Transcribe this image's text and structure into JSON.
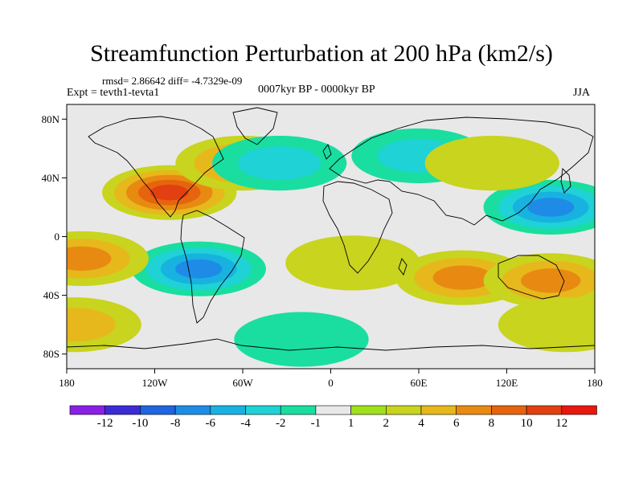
{
  "title": "Streamfunction Perturbation at 200 hPa (km2/s)",
  "subtitle_stats": "rmsd= 2.86642  diff= -4.7329e-09",
  "experiment": "Expt = tevth1-tevta1",
  "period": "0007kyr BP - 0000kyr BP",
  "season": "JJA",
  "chart_data": {
    "type": "heatmap",
    "variable": "streamfunction perturbation",
    "level": "200 hPa",
    "units": "km2/s",
    "x_axis": {
      "range": [
        -180,
        180
      ],
      "ticks": [
        -180,
        -120,
        -60,
        0,
        60,
        120,
        180
      ],
      "tick_labels": [
        "180",
        "120W",
        "60W",
        "0",
        "60E",
        "120E",
        "180"
      ]
    },
    "y_axis": {
      "range": [
        -90,
        90
      ],
      "ticks": [
        80,
        40,
        0,
        -40,
        -80
      ],
      "tick_labels": [
        "80N",
        "40N",
        "0",
        "40S",
        "80S"
      ]
    },
    "colorbar": {
      "labels": [
        "-12",
        "-10",
        "-8",
        "-6",
        "-4",
        "-2",
        "-1",
        "1",
        "2",
        "4",
        "6",
        "8",
        "10",
        "12"
      ],
      "colors": [
        "#8a20e6",
        "#3b2bd6",
        "#1f64e0",
        "#1e8ce6",
        "#18b2e0",
        "#1ed2d6",
        "#19dea0",
        "#e8e8e8",
        "#a0e01c",
        "#c8d41e",
        "#e6b81c",
        "#e88a12",
        "#e6640e",
        "#e24010",
        "#e81810"
      ]
    },
    "features": [
      {
        "lon": -110,
        "lat": 30,
        "value": 10
      },
      {
        "lon": -60,
        "lat": 50,
        "value": 6
      },
      {
        "lon": 150,
        "lat": 20,
        "value": -8
      },
      {
        "lon": -90,
        "lat": -22,
        "value": -8
      },
      {
        "lon": -35,
        "lat": 50,
        "value": -5
      },
      {
        "lon": 60,
        "lat": 55,
        "value": -5
      },
      {
        "lon": 15,
        "lat": -18,
        "value": 3
      },
      {
        "lon": 90,
        "lat": -28,
        "value": 7
      },
      {
        "lon": 150,
        "lat": -30,
        "value": 6
      },
      {
        "lon": 160,
        "lat": -60,
        "value": 2
      },
      {
        "lon": -170,
        "lat": -15,
        "value": 6
      },
      {
        "lon": -175,
        "lat": -60,
        "value": 5
      },
      {
        "lon": -20,
        "lat": -70,
        "value": -2
      },
      {
        "lon": 110,
        "lat": 50,
        "value": 3
      }
    ]
  }
}
